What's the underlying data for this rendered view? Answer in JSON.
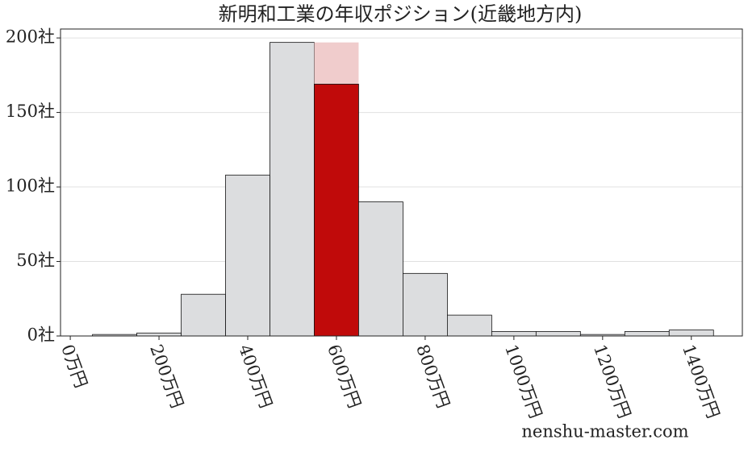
{
  "chart_data": {
    "type": "histogram",
    "title": "新明和工業の年収ポジション(近畿地方内)",
    "bins": [
      50,
      150,
      250,
      350,
      450,
      550,
      650,
      750,
      850,
      950,
      1050,
      1150,
      1250,
      1350,
      1450
    ],
    "values": [
      1,
      2,
      28,
      108,
      197,
      169,
      90,
      42,
      14,
      3,
      3,
      1,
      3,
      4
    ],
    "color": "#dcdddf",
    "highlight_index": 5,
    "highlight_color": "#c00a0a",
    "highlight_background": 197,
    "highlight_background_color": "#f0cccc",
    "xlim": [
      -22,
      1515
    ],
    "ylim": [
      0,
      206
    ],
    "xticks": [
      {
        "value": 0,
        "label": "0万円"
      },
      {
        "value": 200,
        "label": "200万円"
      },
      {
        "value": 400,
        "label": "400万円"
      },
      {
        "value": 600,
        "label": "600万円"
      },
      {
        "value": 800,
        "label": "800万円"
      },
      {
        "value": 1000,
        "label": "1000万円"
      },
      {
        "value": 1200,
        "label": "1200万円"
      },
      {
        "value": 1400,
        "label": "1400万円"
      }
    ],
    "yticks": [
      {
        "value": 0,
        "label": "0社"
      },
      {
        "value": 50,
        "label": "50社"
      },
      {
        "value": 100,
        "label": "100社"
      },
      {
        "value": 150,
        "label": "150社"
      },
      {
        "value": 200,
        "label": "200社"
      }
    ],
    "grid": true,
    "watermark": "nenshu-master.com"
  }
}
